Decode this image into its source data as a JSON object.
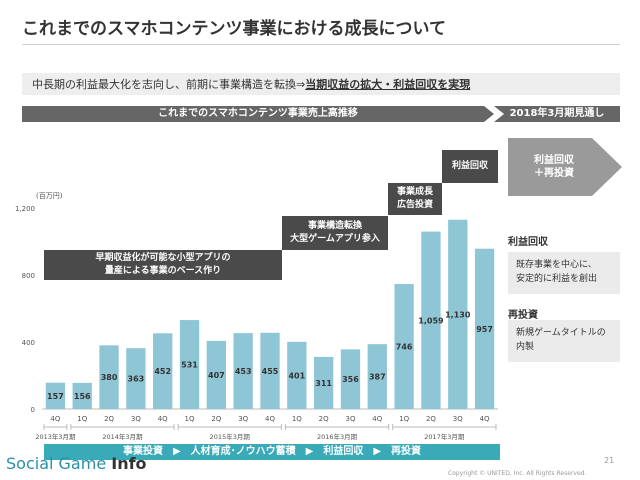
{
  "slide": {
    "title": "これまでのスマホコンテンツ事業における成長について",
    "subtitle_prefix": "中長期の利益最大化を志向し、前期に事業構造を転換⇒",
    "subtitle_emphasis": "当期収益の拡大・利益回収を実現",
    "banner_left": "これまでのスマホコンテンツ事業売上高推移",
    "banner_right": "2018年3月期見通し",
    "annotations": {
      "box1_line1": "早期収益化が可能な小型アプリの",
      "box1_line2": "量産による事業のベース作り",
      "box2_line1": "事業構造転換",
      "box2_line2": "大型ゲームアプリ参入",
      "box3_line1": "事業成長",
      "box3_line2": "広告投資",
      "box4": "利益回収"
    },
    "big_arrow_line1": "利益回収",
    "big_arrow_line2": "＋再投資",
    "side": {
      "head1": "利益回収",
      "body1_line1": "既存事業を中心に、",
      "body1_line2": "安定的に利益を創出",
      "head2": "再投資",
      "body2_line1": "新規ゲームタイトルの",
      "body2_line2": "内製"
    },
    "bottom_bar": "事業投資　▶　人材育成･ノウハウ蓄積　▶　利益回収　▶　再投資",
    "logo_prefix": "Social Game ",
    "logo_suffix": "Info",
    "copyright": "Copyright © UNITED, Inc. All Rights Reserved.",
    "page_number": "21"
  },
  "colors": {
    "bar": "#8fc6d6",
    "bar_label": "#333333",
    "dark_box": "#4a4a4a",
    "accent": "#3aa9b8"
  },
  "chart_data": {
    "type": "bar",
    "ylabel": "(百万円)",
    "ylim": [
      0,
      1200
    ],
    "yticks": [
      0,
      400,
      800,
      1200
    ],
    "ytick_labels": [
      "0",
      "400",
      "800",
      "1,200"
    ],
    "grid": false,
    "categories": [
      "4Q",
      "1Q",
      "2Q",
      "3Q",
      "4Q",
      "1Q",
      "2Q",
      "3Q",
      "4Q",
      "1Q",
      "2Q",
      "3Q",
      "4Q",
      "1Q",
      "2Q",
      "3Q",
      "4Q"
    ],
    "values": [
      157,
      156,
      380,
      363,
      452,
      531,
      407,
      453,
      455,
      401,
      311,
      356,
      387,
      746,
      1059,
      1130,
      957
    ],
    "value_labels": [
      "157",
      "156",
      "380",
      "363",
      "452",
      "531",
      "407",
      "453",
      "455",
      "401",
      "311",
      "356",
      "387",
      "746",
      "1,059",
      "1,130",
      "957"
    ],
    "fiscal_years": [
      {
        "label": "2013年3月期",
        "first": 0,
        "last": 0
      },
      {
        "label": "2014年3月期",
        "first": 1,
        "last": 4
      },
      {
        "label": "2015年3月期",
        "first": 5,
        "last": 8
      },
      {
        "label": "2016年3月期",
        "first": 9,
        "last": 12
      },
      {
        "label": "2017年3月期",
        "first": 13,
        "last": 16
      }
    ]
  }
}
